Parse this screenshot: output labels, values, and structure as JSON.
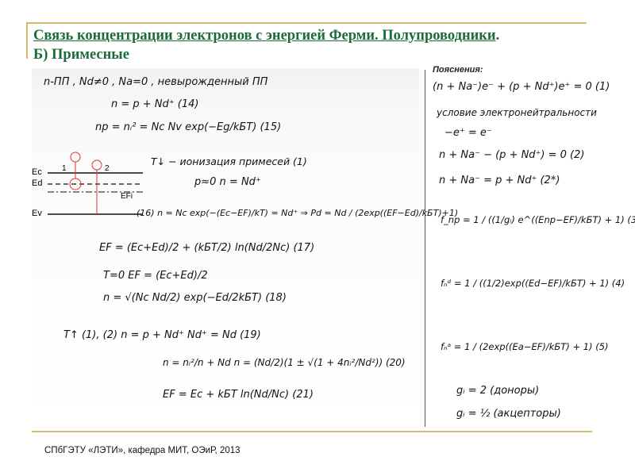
{
  "title": {
    "line1": "Связь концентрации электронов с энергией Ферми. Полупроводники",
    "punct": ".",
    "line2": "Б) Примесные"
  },
  "notes_label": "Пояснения:",
  "left_formulas": [
    "n-ПП ,  Nd≠0 ,  Na=0 ,  невырожденный ПП",
    "n = p + Nd⁺   (14)",
    "np = nᵢ² = Nc Nv exp(−Eg/kБT)   (15)",
    "T↓  − ионизация примесей (1)",
    "p≈0      n = Nd⁺",
    "(16)  n = Nc exp(−(Ec−EF)/kT) = Nd⁺ ⇒ Pd = Nd / (2exp((EF−Ed)/kБT)+1)",
    "EF = (Ec+Ed)/2 + (kБT/2) ln(Nd/2Nc)   (17)",
    "T=0   EF = (Ec+Ed)/2",
    "n = √(Nc Nd/2) exp(−Ed/2kБT)   (18)",
    "T↑  (1), (2)      n = p + Nd⁺     Nd⁺ = Nd   (19)",
    "n = nᵢ²/n + Nd      n = (Nd/2)(1 ± √(1 + 4nᵢ²/Nd²))   (20)",
    "EF = Ec + kБT ln(Nd/Nc)   (21)"
  ],
  "diagram_labels": {
    "ec": "Ec",
    "ed": "Ed",
    "efi": "EFi",
    "ev": "Ev",
    "n1": "1",
    "n2": "2"
  },
  "right_formulas": [
    "(n + Na⁻)e⁻ + (p + Nd⁺)e⁺ = 0   (1)",
    "условие электронейтральности",
    "−e⁺ = e⁻",
    "n + Na⁻ − (p + Nd⁺) = 0   (2)",
    "n + Na⁻ = p + Nd⁺   (2*)",
    "f_np = 1 / ((1/gᵢ) e^((Enp−EF)/kБT) + 1)   (3)",
    "fₙᵈ = 1 / ((1/2)exp((Ed−EF)/kБT) + 1)   (4)",
    "fₙᵃ = 1 / (2exp((Ea−EF)/kБT) + 1)   (5)",
    "gᵢ = 2 (доноры)",
    "gᵢ = ½ (акцепторы)"
  ],
  "footer": "СПбГЭТУ «ЛЭТИ», кафедра МИТ, ОЭиР, 2013",
  "colors": {
    "title": "#1d6b3c",
    "rule": "#d9b96a",
    "diagram_marks": "#e0303a"
  }
}
